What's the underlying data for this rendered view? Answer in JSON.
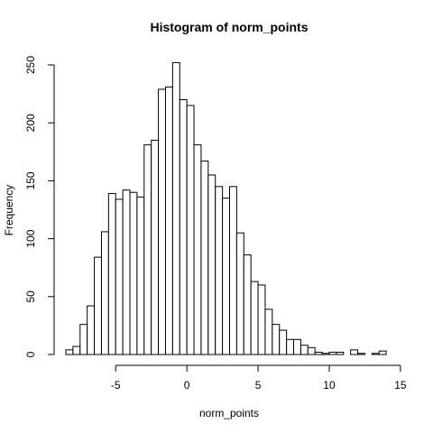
{
  "chart_data": {
    "type": "bar",
    "title": "Histogram of norm_points",
    "xlabel": "norm_points",
    "ylabel": "Frequency",
    "bin_width": 0.5,
    "bin_start": -8.5,
    "values": [
      4,
      7,
      26,
      42,
      84,
      106,
      139,
      134,
      142,
      140,
      136,
      181,
      185,
      229,
      231,
      252,
      220,
      215,
      181,
      167,
      155,
      145,
      135,
      145,
      105,
      86,
      63,
      60,
      39,
      26,
      21,
      13,
      13,
      8,
      6,
      2,
      1,
      2,
      2,
      0,
      4,
      1,
      0,
      1,
      3
    ],
    "xlim": [
      -8.5,
      14.5
    ],
    "ylim": [
      0,
      250
    ],
    "xticks": [
      -5,
      0,
      5,
      10,
      15
    ],
    "xtick_labels": [
      "-5",
      "0",
      "5",
      "10",
      "15"
    ],
    "yticks": [
      0,
      50,
      100,
      150,
      200,
      250
    ],
    "ytick_labels": [
      "0",
      "50",
      "100",
      "150",
      "200",
      "250"
    ],
    "grid": false,
    "legend": "none"
  }
}
